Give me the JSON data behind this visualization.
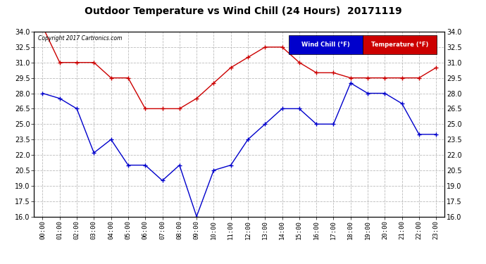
{
  "title": "Outdoor Temperature vs Wind Chill (24 Hours)  20171119",
  "copyright": "Copyright 2017 Cartronics.com",
  "x_labels": [
    "00:00",
    "01:00",
    "02:00",
    "03:00",
    "04:00",
    "05:00",
    "06:00",
    "07:00",
    "08:00",
    "09:00",
    "10:00",
    "11:00",
    "12:00",
    "13:00",
    "14:00",
    "15:00",
    "16:00",
    "17:00",
    "18:00",
    "19:00",
    "20:00",
    "21:00",
    "22:00",
    "23:00"
  ],
  "temperature": [
    34.5,
    31.0,
    31.0,
    31.0,
    29.5,
    29.5,
    26.5,
    26.5,
    26.5,
    27.5,
    29.0,
    30.5,
    31.5,
    32.5,
    32.5,
    31.0,
    30.0,
    30.0,
    29.5,
    29.5,
    29.5,
    29.5,
    29.5,
    30.5
  ],
  "wind_chill": [
    28.0,
    27.5,
    26.5,
    22.2,
    23.5,
    21.0,
    21.0,
    19.5,
    21.0,
    16.0,
    20.5,
    21.0,
    23.5,
    25.0,
    26.5,
    26.5,
    25.0,
    25.0,
    29.0,
    28.0,
    28.0,
    27.0,
    24.0,
    24.0
  ],
  "ylim": [
    16.0,
    34.0
  ],
  "yticks": [
    16.0,
    17.5,
    19.0,
    20.5,
    22.0,
    23.5,
    25.0,
    26.5,
    28.0,
    29.5,
    31.0,
    32.5,
    34.0
  ],
  "temp_color": "#cc0000",
  "wind_color": "#0000cc",
  "bg_color": "#ffffff",
  "plot_bg_color": "#ffffff",
  "grid_color": "#bbbbbb",
  "title_fontsize": 10,
  "legend_wind_label": "Wind Chill (°F)",
  "legend_temp_label": "Temperature (°F)"
}
